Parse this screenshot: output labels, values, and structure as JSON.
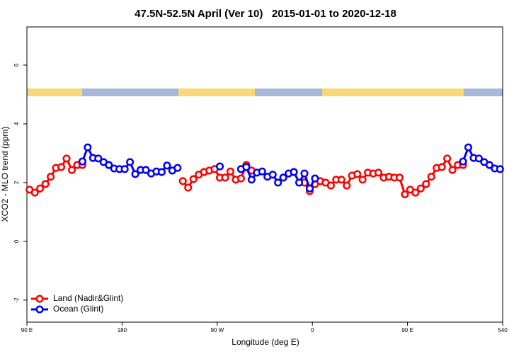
{
  "chart_data": {
    "type": "line",
    "title": "47.5N-52.5N April (Ver 10)   2015-01-01 to 2020-12-18",
    "x_label": "Longitude (deg E)",
    "y_label": "XCO2 - MLO trend (ppm)",
    "x": [
      92.5,
      97.5,
      102.5,
      107.5,
      112.5,
      117.5,
      122.5,
      127.5,
      132.5,
      137.5,
      142.5,
      147.5,
      152.5,
      157.5,
      162.5,
      167.5,
      172.5,
      177.5,
      182.5,
      187.5,
      192.5,
      197.5,
      202.5,
      207.5,
      212.5,
      217.5,
      222.5,
      227.5,
      232.5,
      237.5,
      242.5,
      247.5,
      252.5,
      257.5,
      262.5,
      267.5,
      272.5,
      277.5,
      282.5,
      287.5,
      292.5,
      297.5,
      302.5,
      307.5,
      312.5,
      317.5,
      322.5,
      327.5,
      332.5,
      337.5,
      342.5,
      347.5,
      352.5,
      357.5,
      362.5,
      367.5,
      372.5,
      377.5,
      382.5,
      387.5,
      392.5,
      397.5,
      402.5,
      407.5,
      412.5,
      417.5,
      422.5,
      427.5,
      432.5,
      437.5,
      442.5,
      447.5,
      452.5,
      457.5,
      462.5,
      467.5,
      472.5,
      477.5,
      482.5,
      487.5,
      492.5,
      497.5,
      502.5,
      507.5,
      512.5,
      517.5,
      522.5,
      527.5,
      532.5,
      537.5
    ],
    "series": [
      {
        "name": "Land (Nadir&Glint)",
        "color": "#ff0000",
        "values": [
          1.76,
          1.66,
          1.8,
          1.95,
          2.2,
          2.5,
          2.53,
          2.82,
          2.43,
          2.6,
          2.6,
          null,
          null,
          null,
          null,
          null,
          null,
          null,
          null,
          null,
          null,
          null,
          null,
          null,
          null,
          null,
          null,
          null,
          null,
          2.05,
          1.83,
          2.12,
          2.27,
          2.36,
          2.41,
          2.46,
          2.17,
          2.17,
          2.38,
          2.1,
          2.14,
          2.6,
          2.41,
          null,
          null,
          null,
          null,
          null,
          null,
          null,
          null,
          null,
          2.0,
          1.71,
          1.95,
          2.05,
          2.0,
          1.9,
          2.1,
          2.1,
          1.9,
          2.24,
          2.29,
          2.1,
          2.34,
          2.31,
          2.34,
          2.17,
          2.2,
          2.17,
          2.17,
          1.6,
          1.76,
          1.66,
          1.8,
          1.95,
          2.2,
          2.5,
          2.53,
          2.82,
          2.43,
          2.6,
          2.6,
          null,
          null,
          null,
          null,
          null,
          null,
          null
        ]
      },
      {
        "name": "Ocean (Glint)",
        "color": "#0000ff",
        "values": [
          null,
          null,
          null,
          null,
          null,
          null,
          null,
          null,
          null,
          null,
          2.72,
          3.2,
          2.84,
          2.82,
          2.7,
          2.6,
          2.48,
          2.46,
          2.46,
          2.7,
          2.29,
          2.43,
          2.43,
          2.31,
          2.38,
          2.36,
          2.58,
          2.41,
          2.5,
          null,
          null,
          null,
          null,
          null,
          null,
          null,
          2.55,
          null,
          null,
          null,
          2.46,
          2.53,
          2.1,
          2.34,
          2.38,
          2.2,
          2.27,
          2.0,
          2.17,
          2.31,
          2.36,
          2.0,
          2.31,
          1.8,
          2.14,
          null,
          null,
          null,
          null,
          null,
          null,
          null,
          null,
          null,
          null,
          null,
          null,
          null,
          null,
          null,
          null,
          null,
          null,
          null,
          null,
          null,
          null,
          null,
          null,
          null,
          null,
          null,
          2.72,
          3.2,
          2.84,
          2.82,
          2.7,
          2.6,
          2.48,
          2.46
        ]
      }
    ],
    "xlim": [
      90,
      540
    ],
    "xticks": [
      {
        "value": 90,
        "label": "90 E"
      },
      180,
      {
        "value": 270,
        "label": "90 W"
      },
      {
        "value": 360,
        "label": "0"
      },
      {
        "value": 450,
        "label": "90 E"
      },
      540
    ],
    "ylim": [
      -2.75,
      7.3
    ],
    "yticks": [
      -2,
      0,
      2,
      4,
      6
    ],
    "legend": "bottom-left"
  }
}
